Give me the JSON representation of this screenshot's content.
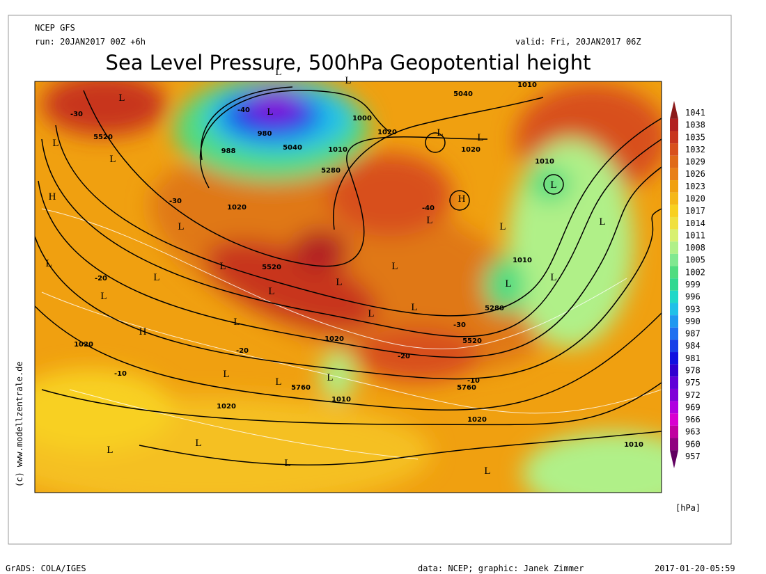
{
  "header": {
    "model": "NCEP GFS",
    "run": "run: 20JAN2017 00Z +6h",
    "valid": "valid: Fri, 20JAN2017 06Z",
    "title": "Sea Level Pressure, 500hPa Geopotential height"
  },
  "map": {
    "labels": [
      "L",
      "L",
      "L",
      "980",
      "5040",
      "988",
      "1010",
      "1000",
      "1020",
      "5040",
      "1010",
      "L",
      "1020",
      "L",
      "5280",
      "1020",
      "H",
      "L",
      "L",
      "1010",
      "L",
      "L",
      "5520",
      "L",
      "L",
      "L",
      "H",
      "L",
      "1010",
      "L",
      "L",
      "5280",
      "5520",
      "L",
      "L",
      "L",
      "L",
      "L",
      "L",
      "L",
      "L",
      "L",
      "L",
      "5520",
      "H",
      "1020",
      "1020",
      "L",
      "L",
      "L",
      "5760",
      "1010",
      "5760",
      "1020",
      "1020",
      "L",
      "L",
      "L",
      "L",
      "1010",
      "-30",
      "-40",
      "-30",
      "-20",
      "-10",
      "-20",
      "-30",
      "-40",
      "-20",
      "-10"
    ]
  },
  "legend": {
    "items": [
      {
        "value": 1041,
        "color": "#8b1a1a"
      },
      {
        "value": 1038,
        "color": "#b22020"
      },
      {
        "value": 1035,
        "color": "#c8351e"
      },
      {
        "value": 1032,
        "color": "#d8501c"
      },
      {
        "value": 1029,
        "color": "#e06a18"
      },
      {
        "value": 1026,
        "color": "#e88018"
      },
      {
        "value": 1023,
        "color": "#f0a010"
      },
      {
        "value": 1020,
        "color": "#f5b818"
      },
      {
        "value": 1017,
        "color": "#f8d020"
      },
      {
        "value": 1014,
        "color": "#f0e040"
      },
      {
        "value": 1011,
        "color": "#d8f070"
      },
      {
        "value": 1008,
        "color": "#b0f088"
      },
      {
        "value": 1005,
        "color": "#80e890"
      },
      {
        "value": 1002,
        "color": "#50dc80"
      },
      {
        "value": 999,
        "color": "#30d890"
      },
      {
        "value": 996,
        "color": "#20d8c8"
      },
      {
        "value": 993,
        "color": "#20c0e8"
      },
      {
        "value": 990,
        "color": "#2098f0"
      },
      {
        "value": 987,
        "color": "#2070f0"
      },
      {
        "value": 984,
        "color": "#1840e8"
      },
      {
        "value": 981,
        "color": "#1010e0"
      },
      {
        "value": 978,
        "color": "#3000d0"
      },
      {
        "value": 975,
        "color": "#6000d8"
      },
      {
        "value": 972,
        "color": "#8000d8"
      },
      {
        "value": 969,
        "color": "#b000e0"
      },
      {
        "value": 966,
        "color": "#d800d0"
      },
      {
        "value": 963,
        "color": "#c000a0"
      },
      {
        "value": 960,
        "color": "#900080"
      },
      {
        "value": 957,
        "color": "#600060"
      }
    ],
    "unit": "[hPa]"
  },
  "copyright": "(c) www.modellzentrale.de",
  "footer": {
    "left": "GrADS: COLA/IGES",
    "center": "data: NCEP; graphic: Janek Zimmer",
    "right": "2017-01-20-05:59"
  }
}
